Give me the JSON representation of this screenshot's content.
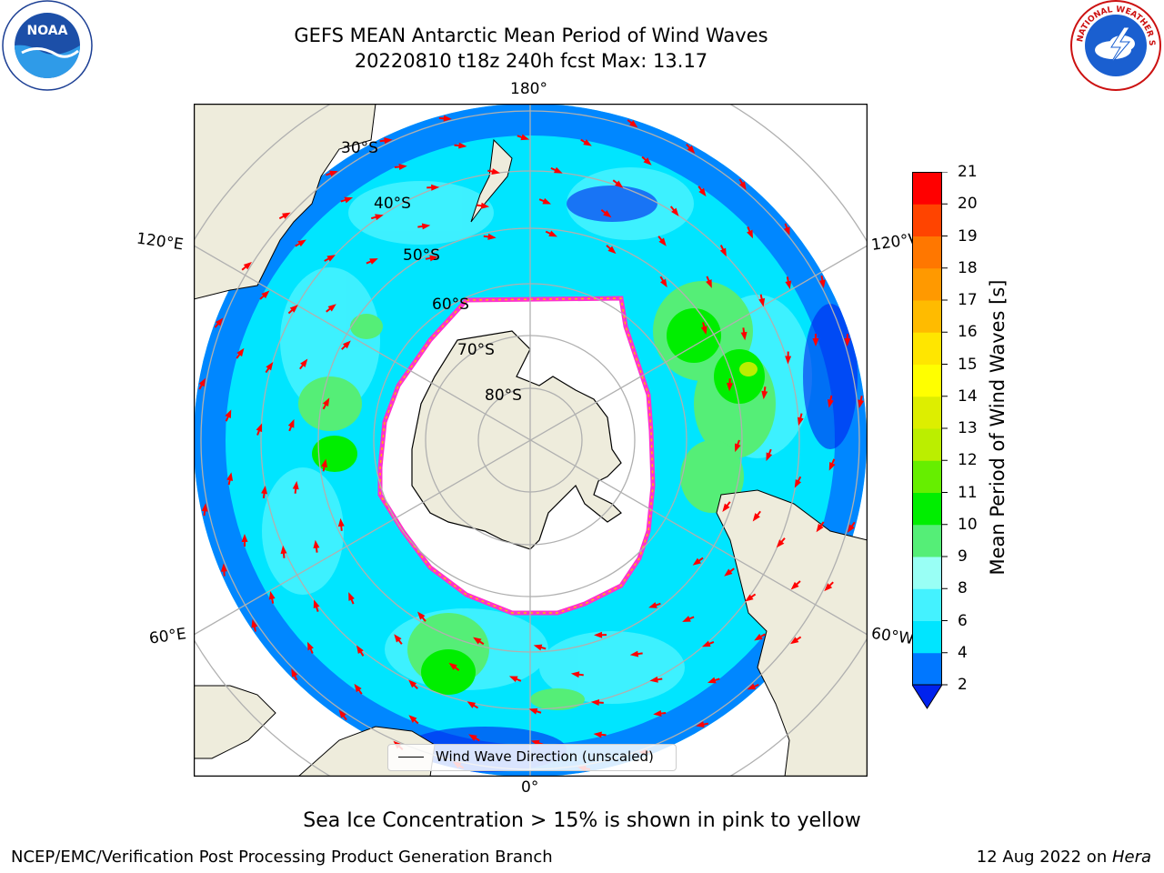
{
  "header": {
    "title_line1": "GEFS MEAN Antarctic Mean Period of Wind Waves",
    "title_line2": "20220810 t18z 240h fcst   Max: 13.17"
  },
  "logos": {
    "noaa": {
      "text": "NOAA"
    },
    "nws": {
      "text": "NATIONAL WEATHER SERVICE"
    }
  },
  "map": {
    "projection": "south-polar-stereographic",
    "center": "South Pole",
    "longitude_labels": {
      "top": "180°",
      "bottom": "0°",
      "left_upper": "120°E",
      "left_lower": "60°E",
      "right_upper": "120°W",
      "right_lower": "60°W"
    },
    "latitude_labels": [
      "30°S",
      "40°S",
      "50°S",
      "60°S",
      "70°S",
      "80°S"
    ],
    "legend": {
      "text": "Wind Wave Direction (unscaled)"
    },
    "colors": {
      "ocean": "#00e8ff",
      "land": "#eeecdc",
      "sea_ice": "#ffffff",
      "ice_edge": "#ff33cc",
      "vectors": "#ff0000",
      "grid": "#b0b0b0"
    }
  },
  "colorbar": {
    "label": "Mean Period of Wind Waves [s]",
    "ticks": [
      "2",
      "4",
      "6",
      "8",
      "9",
      "10",
      "11",
      "12",
      "13",
      "14",
      "15",
      "16",
      "17",
      "18",
      "19",
      "20",
      "21"
    ],
    "levels": [
      {
        "label": "2-4",
        "color": "#0077ff"
      },
      {
        "label": "4-6",
        "color": "#00e5ff"
      },
      {
        "label": "6-8",
        "color": "#44f2ff"
      },
      {
        "label": "8-9",
        "color": "#99fff5"
      },
      {
        "label": "9-10",
        "color": "#55ee77"
      },
      {
        "label": "10-11",
        "color": "#00ee00"
      },
      {
        "label": "11-12",
        "color": "#66ee00"
      },
      {
        "label": "12-13",
        "color": "#bbee00"
      },
      {
        "label": "13-14",
        "color": "#ddee00"
      },
      {
        "label": "14-15",
        "color": "#ffff00"
      },
      {
        "label": "15-16",
        "color": "#ffe600"
      },
      {
        "label": "16-17",
        "color": "#ffbb00"
      },
      {
        "label": "17-18",
        "color": "#ff9900"
      },
      {
        "label": "18-19",
        "color": "#ff7700"
      },
      {
        "label": "19-20",
        "color": "#ff4400"
      },
      {
        "label": "20-21",
        "color": "#ff0000"
      }
    ],
    "under_color": "#0022ee"
  },
  "subtitle": "Sea Ice Concentration > 15% is shown in pink to yellow",
  "footer": {
    "left": "NCEP/EMC/Verification Post Processing Product Generation Branch",
    "right_prefix": "12 Aug 2022 on ",
    "right_italic": "Hera"
  }
}
